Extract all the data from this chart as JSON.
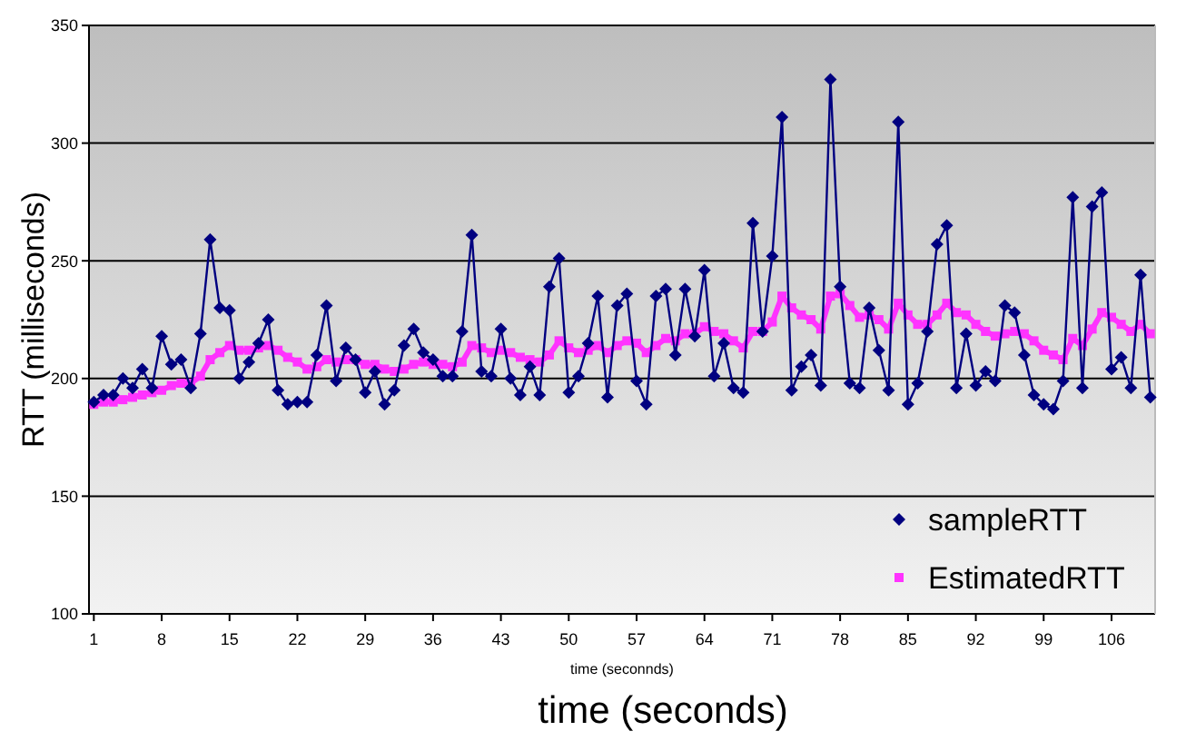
{
  "chart_data": {
    "type": "line",
    "xlabel": "time (seconnds)",
    "ylabel": "RTT (milliseconds)",
    "annotations": [
      "time (seconds)"
    ],
    "x": [
      1,
      2,
      3,
      4,
      5,
      6,
      7,
      8,
      9,
      10,
      11,
      12,
      13,
      14,
      15,
      16,
      17,
      18,
      19,
      20,
      21,
      22,
      23,
      24,
      25,
      26,
      27,
      28,
      29,
      30,
      31,
      32,
      33,
      34,
      35,
      36,
      37,
      38,
      39,
      40,
      41,
      42,
      43,
      44,
      45,
      46,
      47,
      48,
      49,
      50,
      51,
      52,
      53,
      54,
      55,
      56,
      57,
      58,
      59,
      60,
      61,
      62,
      63,
      64,
      65,
      66,
      67,
      68,
      69,
      70,
      71,
      72,
      73,
      74,
      75,
      76,
      77,
      78,
      79,
      80,
      81,
      82,
      83,
      84,
      85,
      86,
      87,
      88,
      89,
      90,
      91,
      92,
      93,
      94,
      95,
      96,
      97,
      98,
      99,
      100,
      101,
      102,
      103,
      104,
      105,
      106,
      107,
      108,
      109,
      110
    ],
    "xlim": [
      0.5,
      110.5
    ],
    "xticks": [
      1,
      8,
      15,
      22,
      29,
      36,
      43,
      50,
      57,
      64,
      71,
      78,
      85,
      92,
      99,
      106
    ],
    "ylim": [
      100,
      350
    ],
    "yticks": [
      100,
      150,
      200,
      250,
      300,
      350
    ],
    "grid": "y",
    "legend": "bottom right",
    "series": [
      {
        "name": "sampleRTT",
        "color": "#000080",
        "marker": "diamond",
        "values": [
          190,
          193,
          193,
          200,
          196,
          204,
          196,
          218,
          206,
          208,
          196,
          219,
          259,
          230,
          229,
          200,
          207,
          215,
          225,
          195,
          189,
          190,
          190,
          210,
          231,
          199,
          213,
          208,
          194,
          203,
          189,
          195,
          214,
          221,
          211,
          208,
          201,
          201,
          220,
          261,
          203,
          201,
          221,
          200,
          193,
          205,
          193,
          239,
          251,
          194,
          201,
          215,
          235,
          192,
          231,
          236,
          199,
          189,
          235,
          238,
          210,
          238,
          218,
          246,
          201,
          215,
          196,
          194,
          266,
          220,
          252,
          311,
          195,
          205,
          210,
          197,
          327,
          239,
          198,
          196,
          230,
          212,
          195,
          309,
          189,
          198,
          220,
          257,
          265,
          196,
          219,
          197,
          203,
          199,
          231,
          228,
          210,
          193,
          189,
          187,
          199,
          277,
          196,
          273,
          279,
          204,
          209,
          196,
          244,
          192
        ]
      },
      {
        "name": "EstimatedRTT",
        "color": "#ff33ff",
        "marker": "square",
        "values": [
          189,
          190,
          190,
          191,
          192,
          193,
          194,
          195,
          197,
          198,
          198,
          201,
          208,
          211,
          214,
          212,
          212,
          213,
          214,
          212,
          209,
          207,
          204,
          205,
          208,
          207,
          208,
          208,
          206,
          206,
          204,
          203,
          204,
          206,
          207,
          206,
          206,
          205,
          207,
          214,
          213,
          211,
          212,
          211,
          209,
          208,
          207,
          210,
          216,
          213,
          211,
          212,
          214,
          211,
          214,
          216,
          215,
          211,
          214,
          217,
          216,
          219,
          219,
          222,
          220,
          219,
          216,
          213,
          220,
          220,
          224,
          235,
          230,
          227,
          225,
          221,
          235,
          236,
          231,
          226,
          227,
          225,
          221,
          232,
          227,
          223,
          223,
          227,
          232,
          228,
          227,
          223,
          220,
          218,
          219,
          220,
          219,
          216,
          212,
          210,
          208,
          217,
          214,
          221,
          228,
          226,
          223,
          220,
          223,
          219
        ]
      }
    ]
  }
}
